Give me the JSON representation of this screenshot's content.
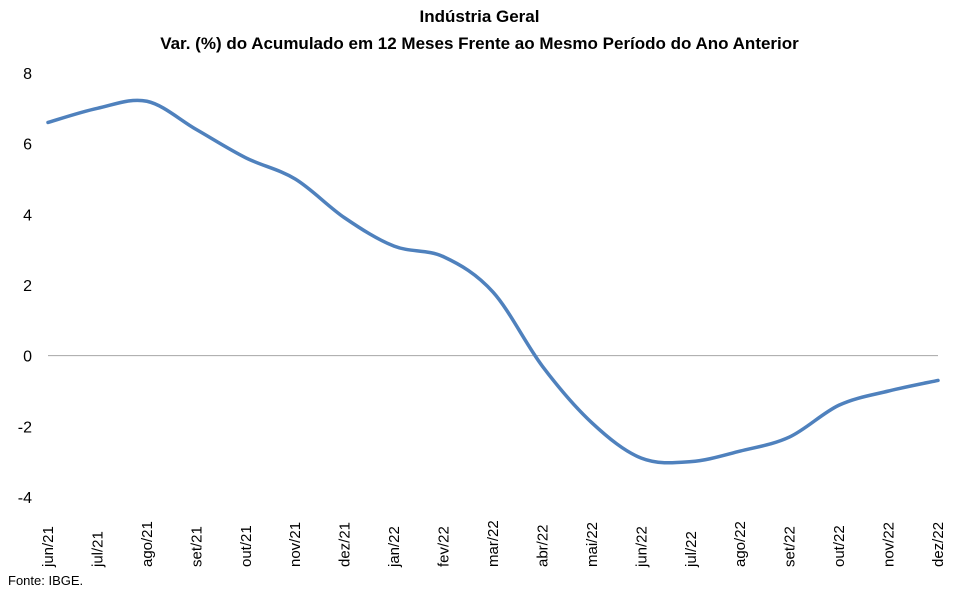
{
  "chart_data": {
    "type": "line",
    "title": "Indústria Geral",
    "subtitle": "Var. (%) do Acumulado em 12 Meses Frente ao Mesmo Período do Ano Anterior",
    "xlabel": "",
    "ylabel": "",
    "ylim": [
      -4,
      8
    ],
    "yticks": [
      -4,
      -2,
      0,
      2,
      4,
      6,
      8
    ],
    "grid": false,
    "legend": "none",
    "categories": [
      "jun/21",
      "jul/21",
      "ago/21",
      "set/21",
      "out/21",
      "nov/21",
      "dez/21",
      "jan/22",
      "fev/22",
      "mar/22",
      "abr/22",
      "mai/22",
      "jun/22",
      "jul/22",
      "ago/22",
      "set/22",
      "out/22",
      "nov/22",
      "dez/22"
    ],
    "series": [
      {
        "color": "#4F81BD",
        "values": [
          6.6,
          7.0,
          7.2,
          6.4,
          5.6,
          5.0,
          3.9,
          3.1,
          2.8,
          1.8,
          -0.3,
          -1.9,
          -2.9,
          -3.0,
          -2.7,
          -2.3,
          -1.4,
          -1.0,
          -0.7
        ]
      }
    ],
    "source": "Fonte: IBGE."
  }
}
